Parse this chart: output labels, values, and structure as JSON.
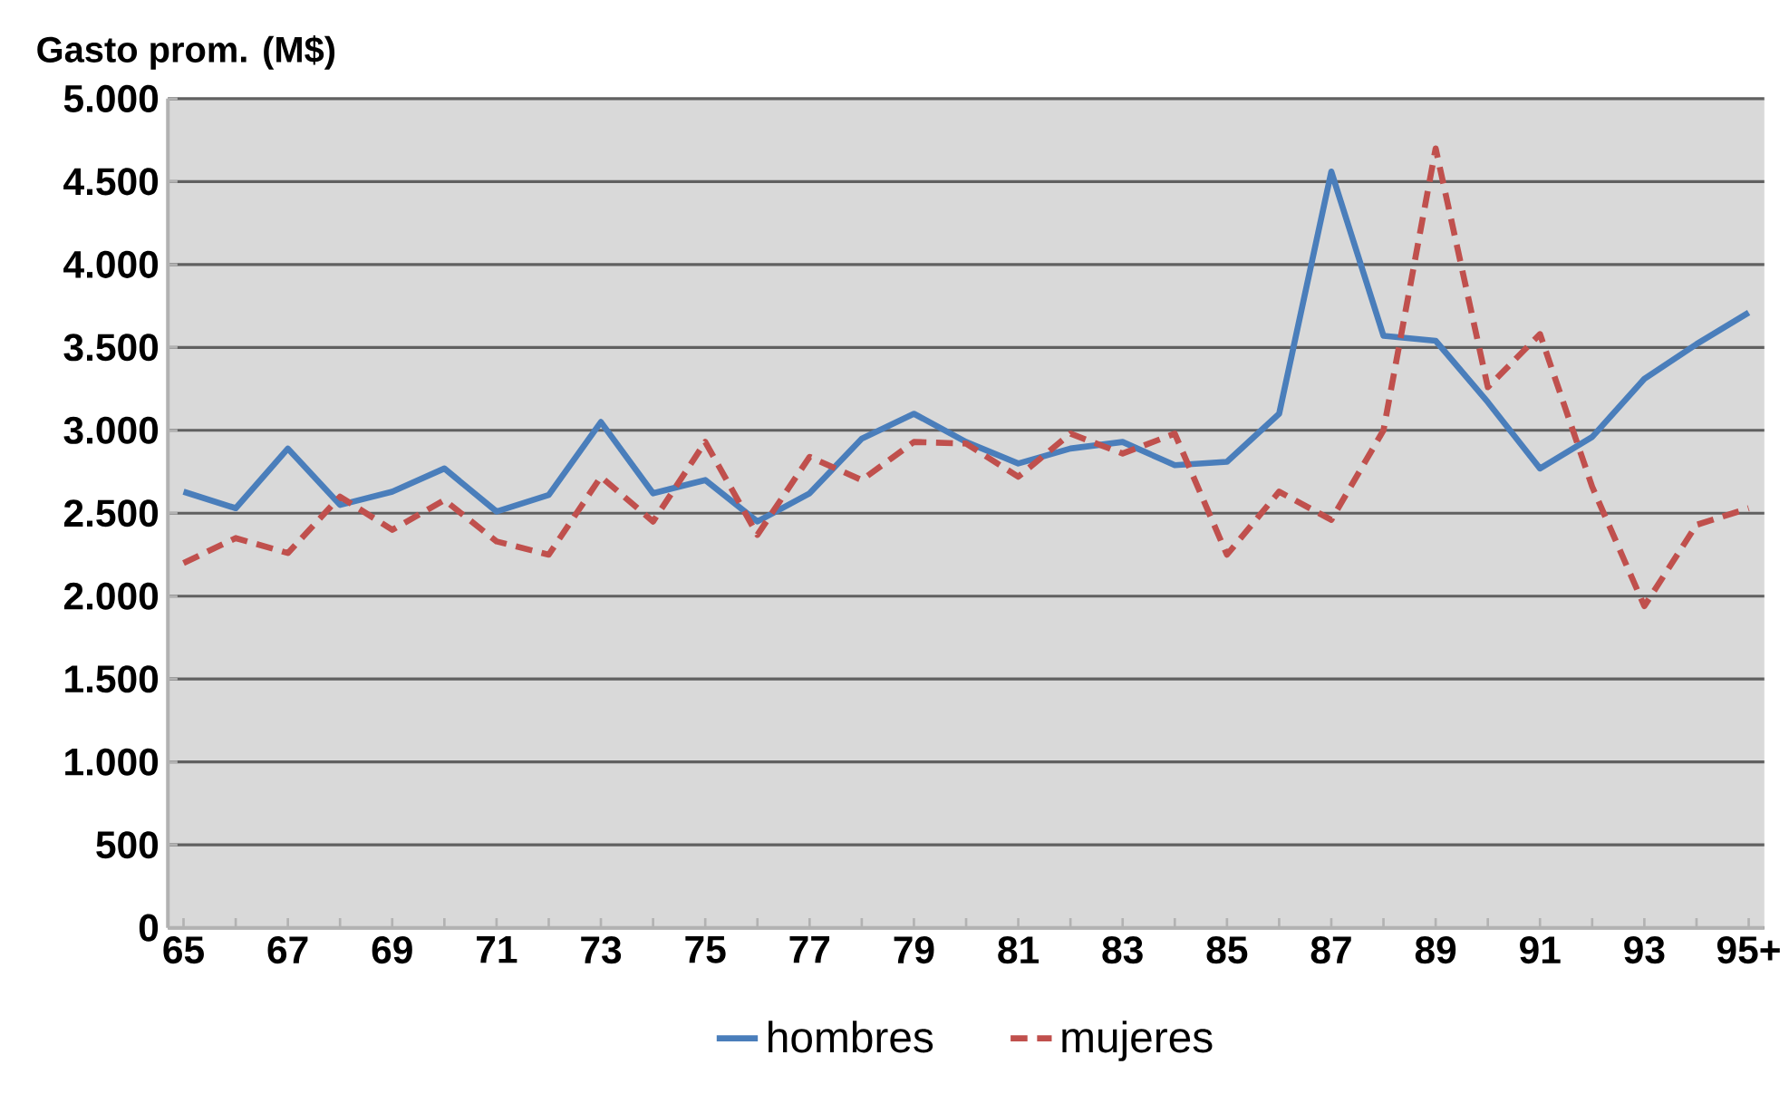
{
  "chart_data": {
    "type": "line",
    "ylabel": "Gasto prom. (M$)",
    "categories": [
      "65",
      null,
      "67",
      null,
      "69",
      null,
      "71",
      null,
      "73",
      null,
      "75",
      null,
      "77",
      null,
      "79",
      null,
      "81",
      null,
      "83",
      null,
      "85",
      null,
      "87",
      null,
      "89",
      null,
      "91",
      null,
      "93",
      null,
      "95+"
    ],
    "series": [
      {
        "name": "hombres",
        "color": "#4a7ebb",
        "line_style": "solid",
        "values": [
          2630,
          2530,
          2890,
          2550,
          2630,
          2770,
          2510,
          2610,
          3050,
          2620,
          2700,
          2450,
          2620,
          2950,
          3100,
          2930,
          2800,
          2890,
          2930,
          2790,
          2810,
          3100,
          4560,
          3570,
          3540,
          3170,
          2770,
          2960,
          3310,
          3520,
          3710
        ]
      },
      {
        "name": "mujeres",
        "color": "#c0504d",
        "line_style": "dashed",
        "values": [
          2200,
          2350,
          2260,
          2600,
          2400,
          2580,
          2330,
          2250,
          2720,
          2450,
          2930,
          2370,
          2840,
          2700,
          2930,
          2920,
          2720,
          2980,
          2860,
          2980,
          2250,
          2630,
          2460,
          3000,
          4700,
          3260,
          3580,
          2660,
          1940,
          2430,
          2530
        ]
      }
    ],
    "ylim": [
      0,
      5000
    ],
    "yticks": [
      0,
      500,
      {
        "value": 1000,
        "label": "1.000"
      },
      {
        "value": 1500,
        "label": "1.500"
      },
      {
        "value": 2000,
        "label": "2.000"
      },
      {
        "value": 2500,
        "label": "2.500"
      },
      {
        "value": 3000,
        "label": "3.000"
      },
      {
        "value": 3500,
        "label": "3.500"
      },
      {
        "value": 4000,
        "label": "4.000"
      },
      {
        "value": 4500,
        "label": "4.500"
      },
      {
        "value": 5000,
        "label": "5.000"
      }
    ],
    "grid": "y",
    "legend": "bottom",
    "marker": "none"
  }
}
